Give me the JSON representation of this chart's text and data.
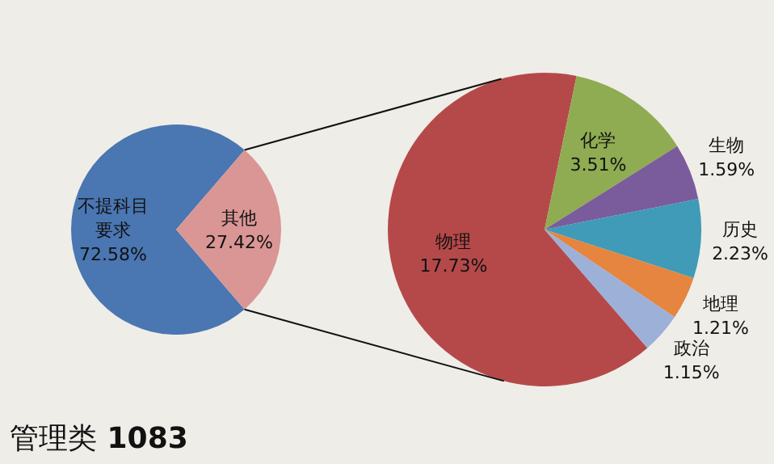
{
  "chart_data": [
    {
      "type": "pie",
      "categories": [
        "不提科目要求",
        "其他"
      ],
      "values": [
        72.58,
        27.42
      ],
      "colors": [
        "#4a76b2",
        "#d99694"
      ],
      "value_labels": [
        "72.58%",
        "27.42%"
      ],
      "annotations": [
        "管理类 1083"
      ]
    },
    {
      "type": "pie",
      "categories": [
        "物理",
        "化学",
        "生物",
        "历史",
        "地理",
        "政治"
      ],
      "values": [
        17.73,
        3.51,
        1.59,
        2.23,
        1.21,
        1.15
      ],
      "colors": [
        "#b5494a",
        "#8fac52",
        "#7a5c9c",
        "#3f9bb8",
        "#e5853f",
        "#9cb0d8"
      ],
      "value_labels": [
        "17.73%",
        "3.51%",
        "1.59%",
        "2.23%",
        "1.21%",
        "1.15%"
      ]
    }
  ]
}
